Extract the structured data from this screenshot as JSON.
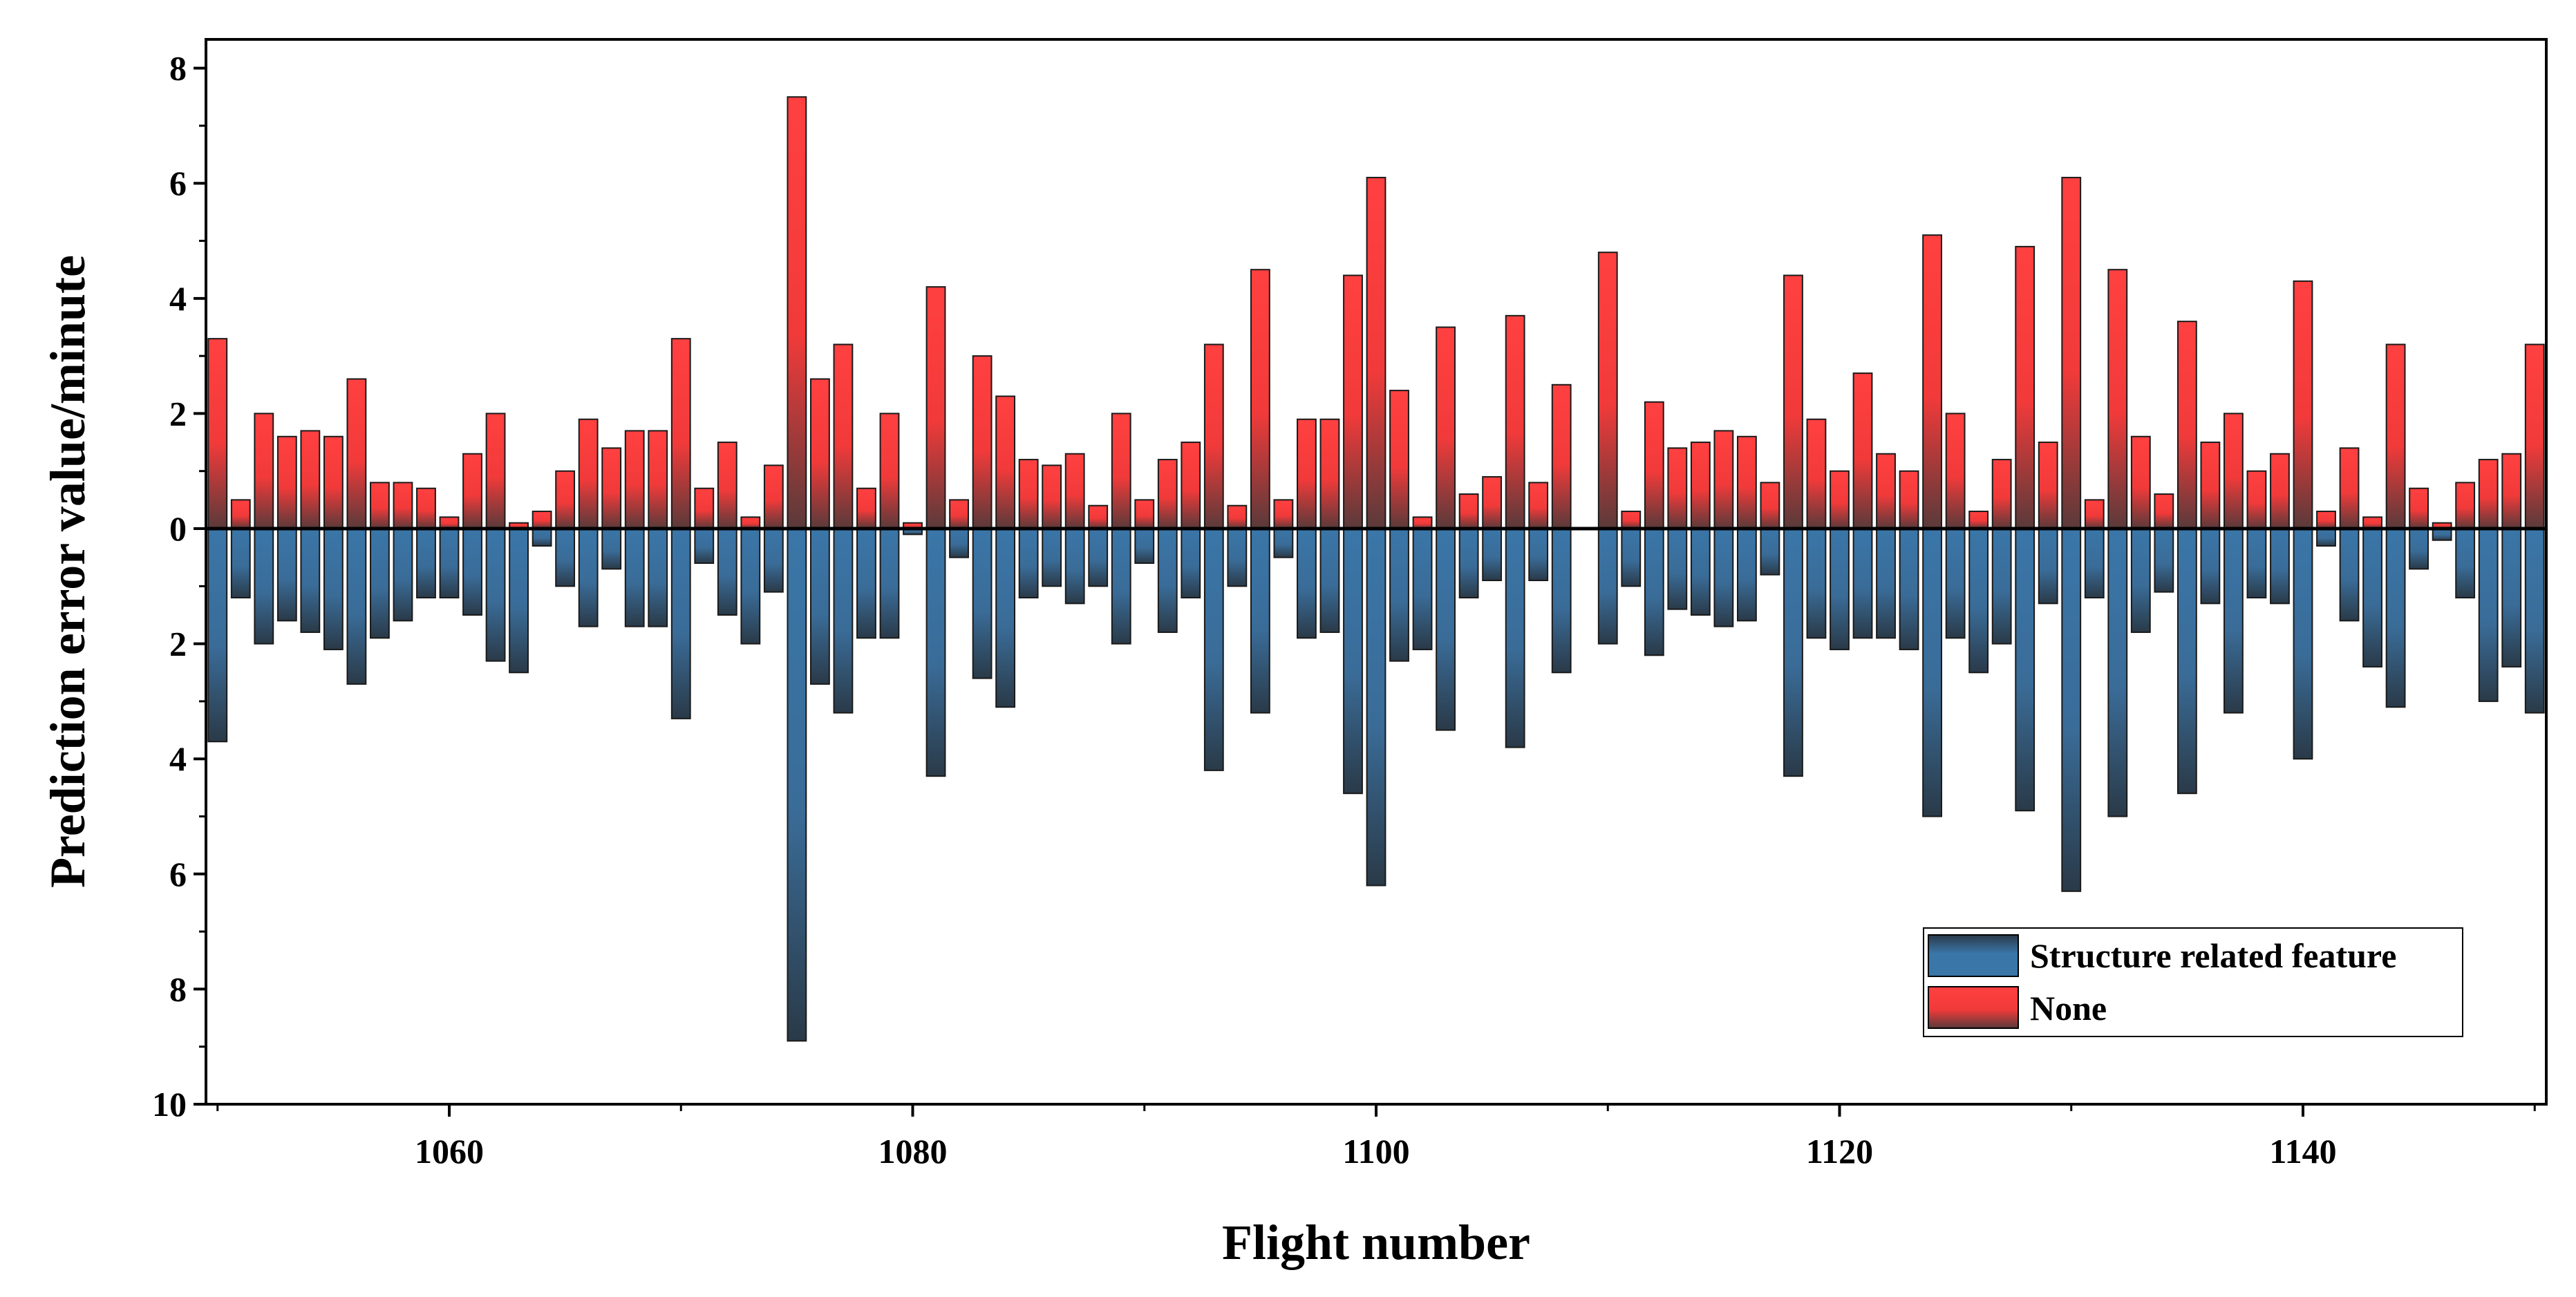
{
  "chart_data": {
    "type": "bar",
    "title": "",
    "xlabel": "Flight number",
    "ylabel": "Prediction error value/minute",
    "xlim": [
      1049.5,
      1150.5
    ],
    "ylim": [
      -10,
      8.5
    ],
    "x_ticks": [
      1060,
      1080,
      1100,
      1120,
      1140
    ],
    "y_ticks": [
      8,
      6,
      4,
      2,
      0,
      -2,
      -4,
      -6,
      -8,
      -10
    ],
    "y_tick_labels": [
      "8",
      "6",
      "4",
      "2",
      "0",
      "2",
      "4",
      "6",
      "8",
      "10"
    ],
    "legend_position": "bottom-right",
    "x": [
      1050,
      1051,
      1052,
      1053,
      1054,
      1055,
      1056,
      1057,
      1058,
      1059,
      1060,
      1061,
      1062,
      1063,
      1064,
      1065,
      1066,
      1067,
      1068,
      1069,
      1070,
      1071,
      1072,
      1073,
      1074,
      1075,
      1076,
      1077,
      1078,
      1079,
      1080,
      1081,
      1082,
      1083,
      1084,
      1085,
      1086,
      1087,
      1088,
      1089,
      1090,
      1091,
      1092,
      1093,
      1094,
      1095,
      1096,
      1097,
      1098,
      1099,
      1100,
      1101,
      1102,
      1103,
      1104,
      1105,
      1106,
      1107,
      1108,
      1109,
      1110,
      1111,
      1112,
      1113,
      1114,
      1115,
      1116,
      1117,
      1118,
      1119,
      1120,
      1121,
      1122,
      1123,
      1124,
      1125,
      1126,
      1127,
      1128,
      1129,
      1130,
      1131,
      1132,
      1133,
      1134,
      1135,
      1136,
      1137,
      1138,
      1139,
      1140,
      1141,
      1142,
      1143,
      1144,
      1145,
      1146,
      1147,
      1148,
      1149,
      1150
    ],
    "series": [
      {
        "name": "Structure related feature",
        "color": "#3a76a8",
        "direction": "down",
        "values": [
          3.7,
          1.2,
          2.0,
          1.6,
          1.8,
          2.1,
          2.7,
          1.9,
          1.6,
          1.2,
          1.2,
          1.5,
          2.3,
          2.5,
          0.3,
          1.0,
          1.7,
          0.7,
          1.7,
          1.7,
          3.3,
          0.6,
          1.5,
          2.0,
          1.1,
          8.9,
          2.7,
          3.2,
          1.9,
          1.9,
          0.1,
          4.3,
          0.5,
          2.6,
          3.1,
          1.2,
          1.0,
          1.3,
          1.0,
          2.0,
          0.6,
          1.8,
          1.2,
          4.2,
          1.0,
          3.2,
          0.5,
          1.9,
          1.8,
          4.6,
          6.2,
          2.3,
          2.1,
          3.5,
          1.2,
          0.9,
          3.8,
          0.9,
          2.5,
          0.0,
          2.0,
          1.0,
          2.2,
          1.4,
          1.5,
          1.7,
          1.6,
          0.8,
          4.3,
          1.9,
          2.1,
          1.9,
          1.9,
          2.1,
          5.0,
          1.9,
          2.5,
          2.0,
          4.9,
          1.3,
          6.3,
          1.2,
          5.0,
          1.8,
          1.1,
          4.6,
          1.3,
          3.2,
          1.2,
          1.3,
          4.0,
          0.3,
          1.6,
          2.4,
          3.1,
          0.7,
          0.2,
          1.2,
          3.0,
          2.4,
          3.2
        ]
      },
      {
        "name": "None",
        "color": "#ff4040",
        "direction": "up",
        "values": [
          3.3,
          0.5,
          2.0,
          1.6,
          1.7,
          1.6,
          2.6,
          0.8,
          0.8,
          0.7,
          0.2,
          1.3,
          2.0,
          0.1,
          0.3,
          1.0,
          1.9,
          1.4,
          1.7,
          1.7,
          3.3,
          0.7,
          1.5,
          0.2,
          1.1,
          7.5,
          2.6,
          3.2,
          0.7,
          2.0,
          0.1,
          4.2,
          0.5,
          3.0,
          2.3,
          1.2,
          1.1,
          1.3,
          0.4,
          2.0,
          0.5,
          1.2,
          1.5,
          3.2,
          0.4,
          4.5,
          0.5,
          1.9,
          1.9,
          4.4,
          6.1,
          2.4,
          0.2,
          3.5,
          0.6,
          0.9,
          3.7,
          0.8,
          2.5,
          0.0,
          4.8,
          0.3,
          2.2,
          1.4,
          1.5,
          1.7,
          1.6,
          0.8,
          4.4,
          1.9,
          1.0,
          2.7,
          1.3,
          1.0,
          5.1,
          2.0,
          0.3,
          1.2,
          4.9,
          1.5,
          6.1,
          0.5,
          4.5,
          1.6,
          0.6,
          3.6,
          1.5,
          2.0,
          1.0,
          1.3,
          4.3,
          0.3,
          1.4,
          0.2,
          3.2,
          0.7,
          0.1,
          0.8,
          1.2,
          1.3,
          3.2
        ]
      }
    ]
  }
}
